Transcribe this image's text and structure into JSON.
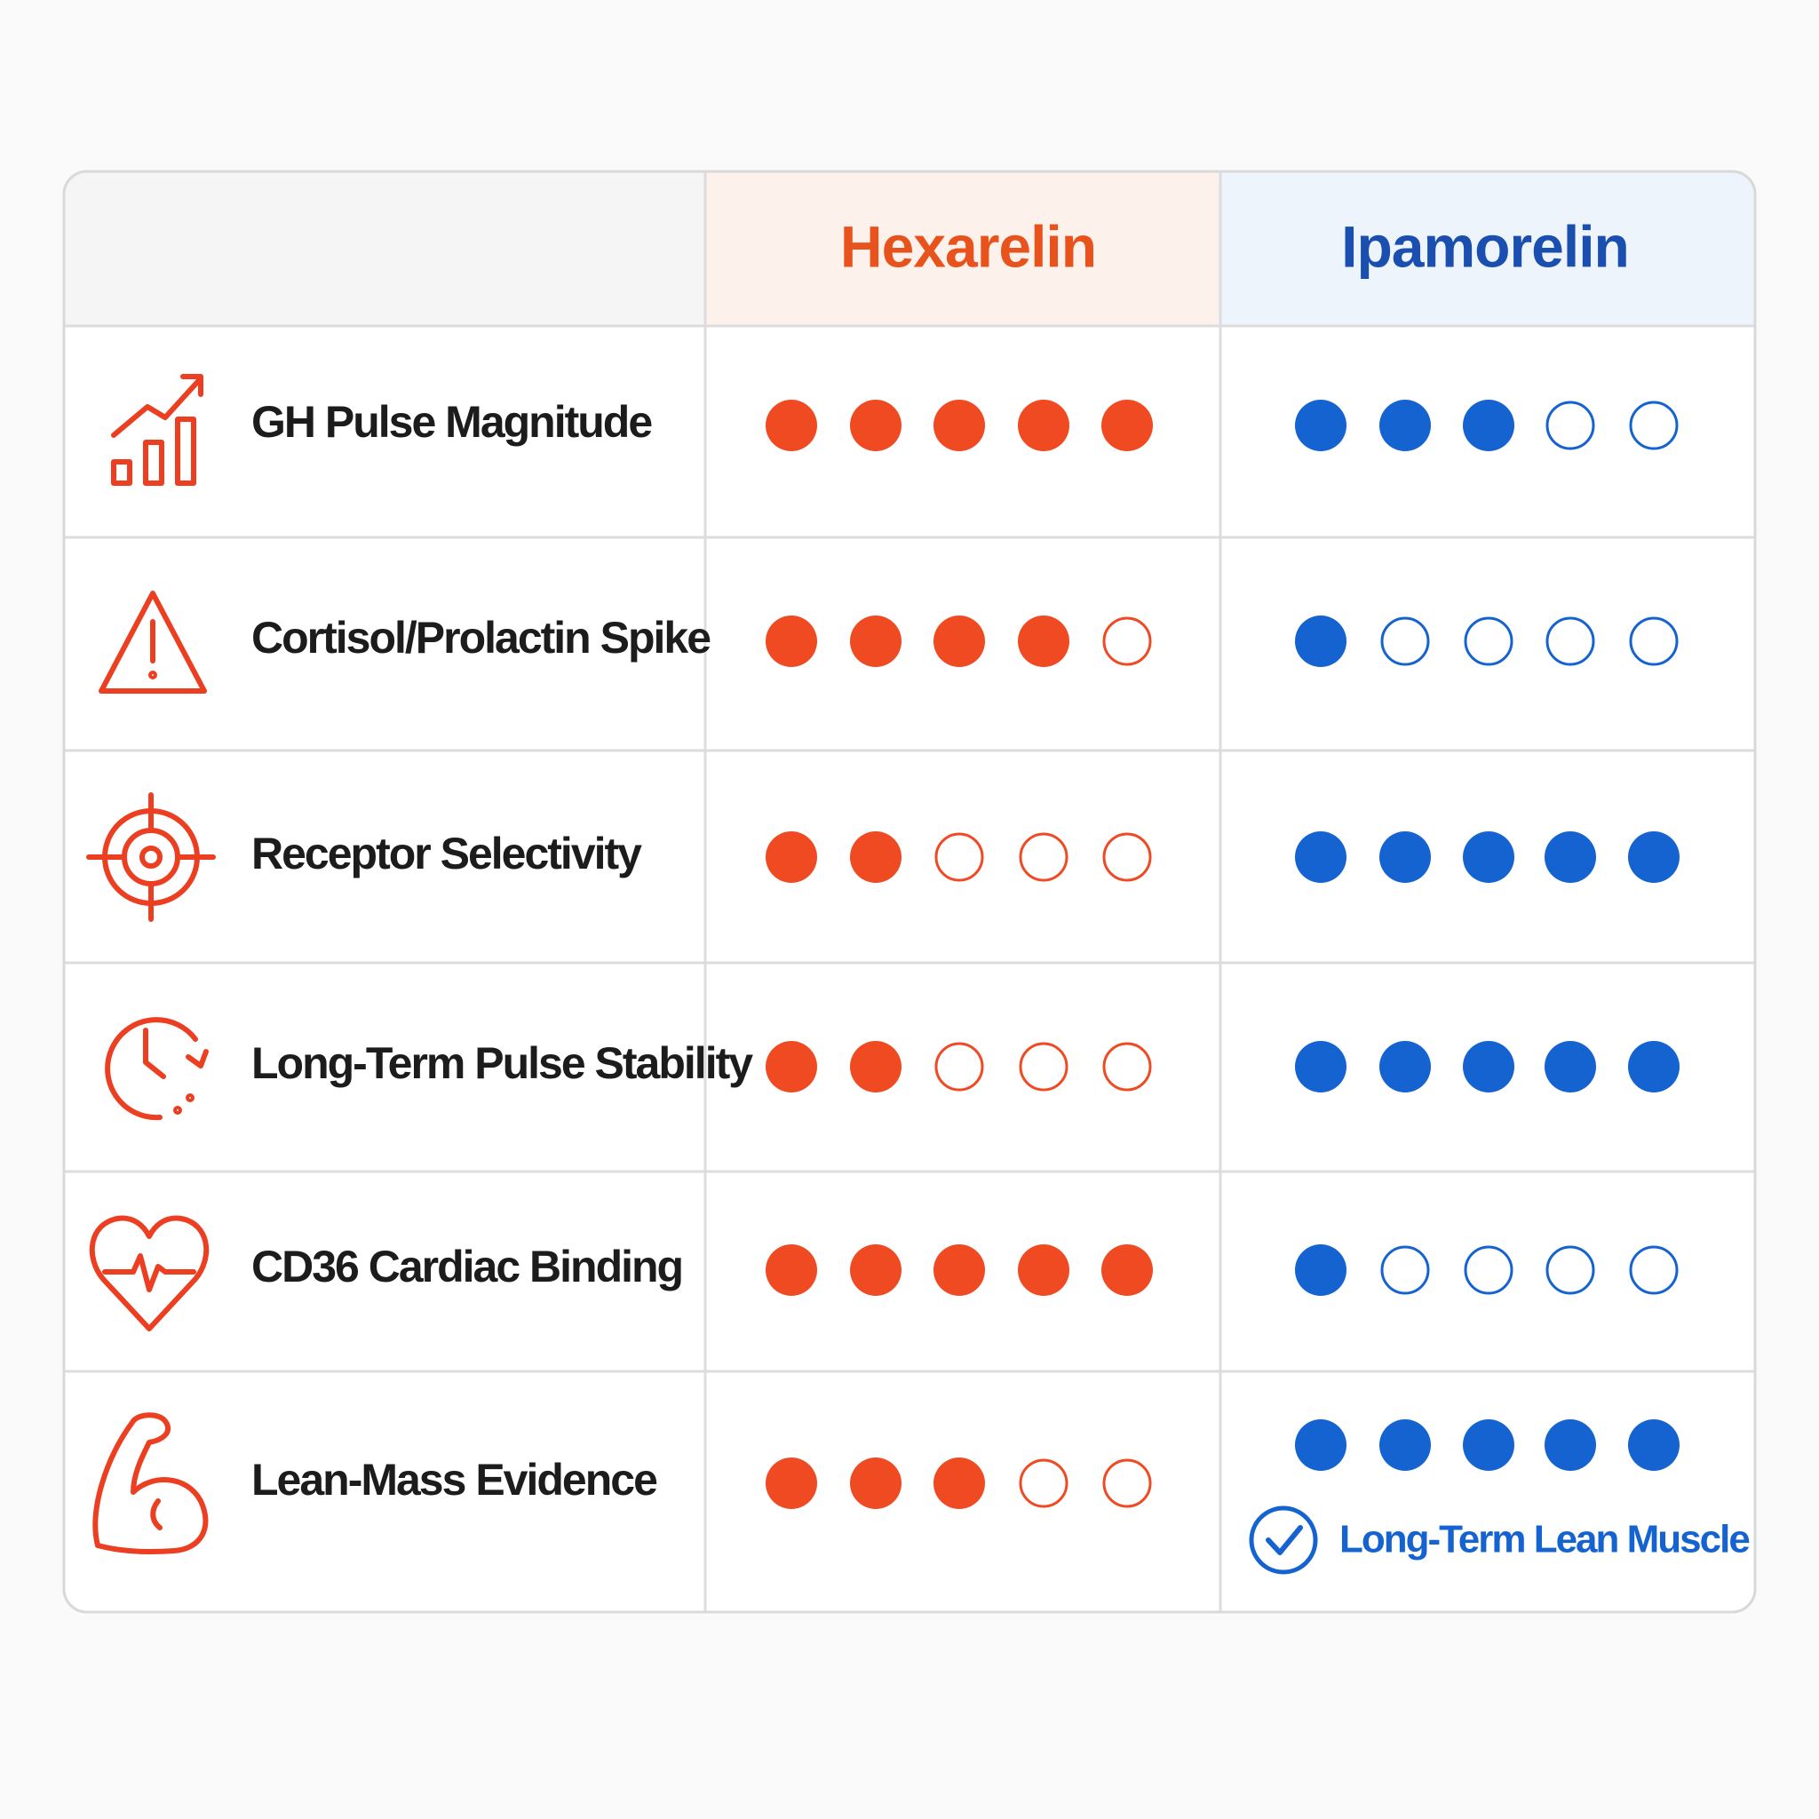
{
  "header": {
    "columns": [
      "Hexarelin",
      "Ipamorelin"
    ]
  },
  "rating_max": 5,
  "rows": [
    {
      "label": "GH Pulse Magnitude",
      "ratings": [
        5,
        3
      ]
    },
    {
      "label": "Cortisol/Prolactin Spike",
      "ratings": [
        4,
        1
      ]
    },
    {
      "label": "Receptor Selectivity",
      "ratings": [
        2,
        5
      ]
    },
    {
      "label": "Long-Term Pulse Stability",
      "ratings": [
        2,
        5
      ]
    },
    {
      "label": "CD36 Cardiac Binding",
      "ratings": [
        5,
        1
      ]
    },
    {
      "label": "Lean-Mass Evidence",
      "ratings": [
        3,
        5
      ],
      "note": "Long-Term Lean Muscle"
    }
  ]
}
